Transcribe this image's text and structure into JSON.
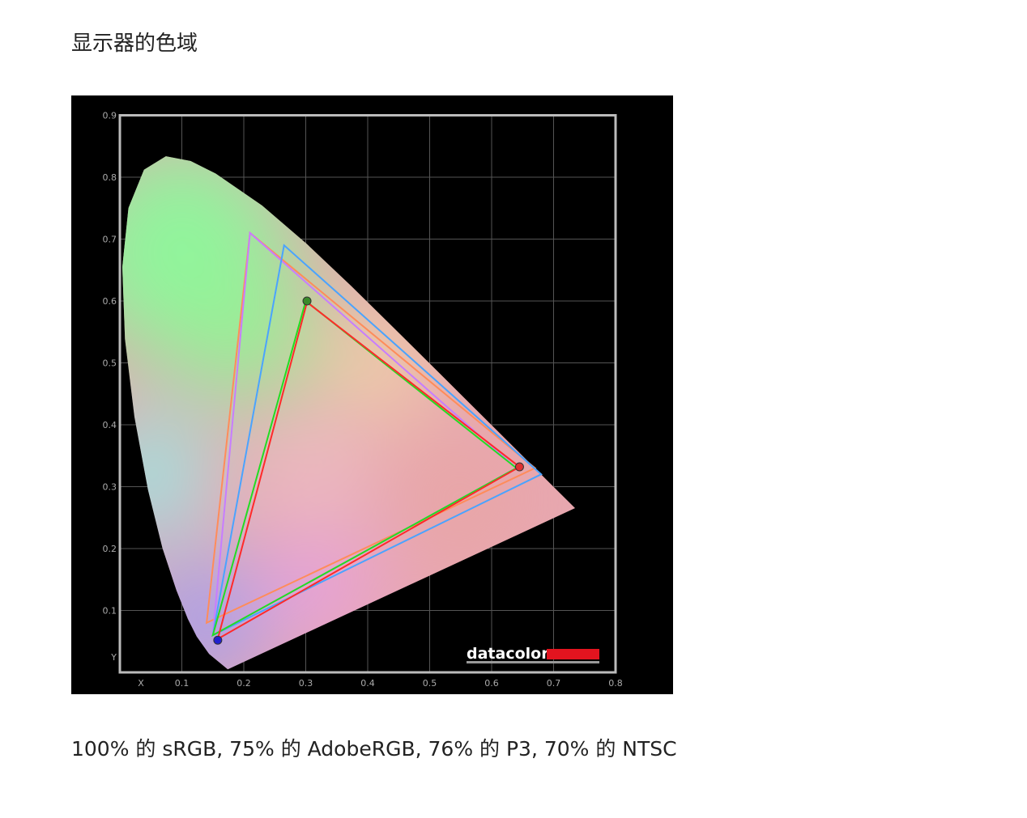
{
  "document": {
    "title": "显示器的色域",
    "caption": "100% 的 sRGB, 75% 的 AdobeRGB, 76% 的 P3, 70% 的 NTSC"
  },
  "chart_data": {
    "type": "scatter",
    "subtype": "CIE 1931 chromaticity diagram with gamut triangles",
    "xlabel": "X",
    "ylabel": "Y",
    "xlim": [
      0,
      0.8
    ],
    "ylim": [
      0,
      0.9
    ],
    "xticks": [
      "0.1",
      "0.2",
      "0.3",
      "0.4",
      "0.5",
      "0.6",
      "0.7",
      "0.8"
    ],
    "yticks": [
      "0.1",
      "0.2",
      "0.3",
      "0.4",
      "0.5",
      "0.6",
      "0.7",
      "0.8",
      "0.9"
    ],
    "grid": true,
    "logo": "datacolor",
    "colors": {
      "background": "#000000",
      "grid": "#555555",
      "frame": "#bbbbbb",
      "logo_bar": "#e3141f"
    },
    "gamuts": [
      {
        "color": "#ff8c5a",
        "points": [
          [
            0.67,
            0.33
          ],
          [
            0.21,
            0.71
          ],
          [
            0.14,
            0.08
          ]
        ]
      },
      {
        "color": "#c77dff",
        "points": [
          [
            0.64,
            0.33
          ],
          [
            0.21,
            0.71
          ],
          [
            0.15,
            0.06
          ]
        ]
      },
      {
        "color": "#4aa3ff",
        "points": [
          [
            0.68,
            0.32
          ],
          [
            0.265,
            0.69
          ],
          [
            0.15,
            0.06
          ]
        ]
      },
      {
        "color": "#22dd22",
        "points": [
          [
            0.64,
            0.33
          ],
          [
            0.3,
            0.6
          ],
          [
            0.15,
            0.06
          ]
        ]
      },
      {
        "color": "#ff2a2a",
        "points": [
          [
            0.645,
            0.332
          ],
          [
            0.302,
            0.598
          ],
          [
            0.158,
            0.054
          ]
        ]
      }
    ],
    "measured_points": [
      {
        "x": 0.645,
        "y": 0.332,
        "color": "#e03030"
      },
      {
        "x": 0.302,
        "y": 0.6,
        "color": "#3a8a2a"
      },
      {
        "x": 0.158,
        "y": 0.052,
        "color": "#2020d0"
      }
    ]
  }
}
